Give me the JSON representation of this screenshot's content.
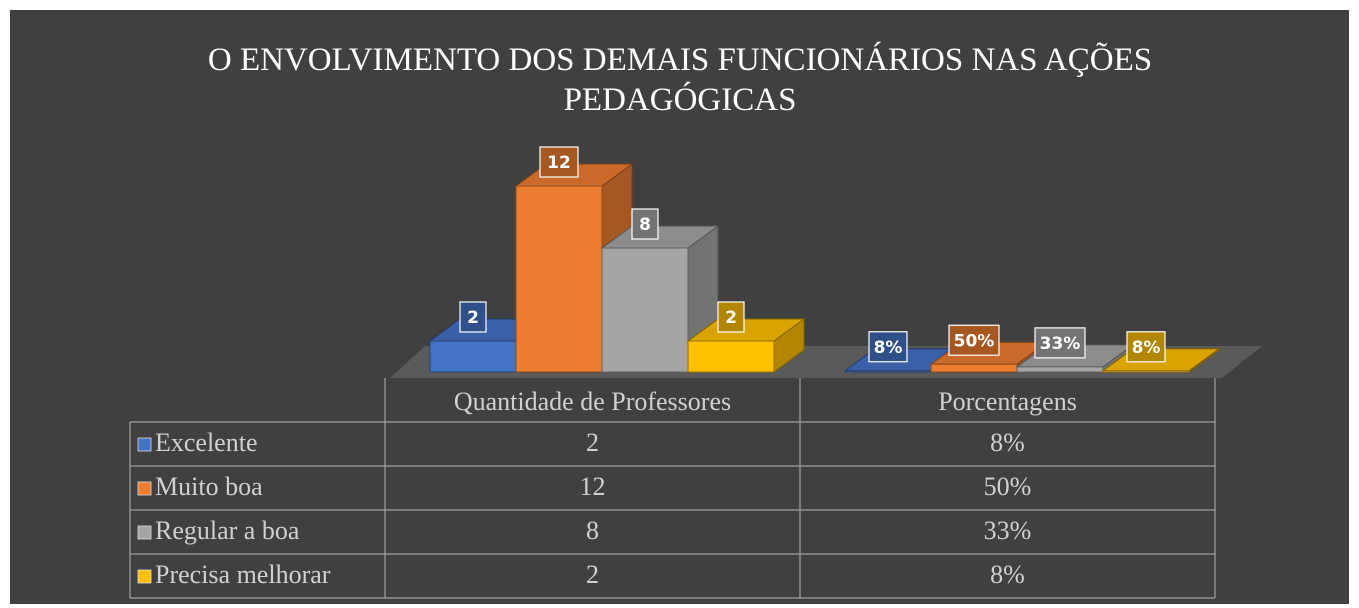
{
  "chart_data": {
    "type": "bar",
    "title": "O ENVOLVIMENTO DOS DEMAIS FUNCIONÁRIOS NAS AÇÕES PEDAGÓGICAS",
    "categories": [
      "Quantidade de Professores",
      "Porcentagens"
    ],
    "series": [
      {
        "name": "Excelente",
        "color": "#4472c4",
        "values": [
          2,
          0.08
        ],
        "value_labels": [
          "2",
          "8%"
        ]
      },
      {
        "name": "Muito boa",
        "color": "#ed7d31",
        "values": [
          12,
          0.5
        ],
        "value_labels": [
          "12",
          "50%"
        ]
      },
      {
        "name": "Regular a boa",
        "color": "#a5a5a5",
        "values": [
          8,
          0.33
        ],
        "value_labels": [
          "8",
          "33%"
        ]
      },
      {
        "name": "Precisa melhorar",
        "color": "#ffc000",
        "values": [
          2,
          0.08
        ],
        "value_labels": [
          "2",
          "8%"
        ]
      }
    ],
    "ylim": [
      0,
      14
    ],
    "data_table": true
  }
}
